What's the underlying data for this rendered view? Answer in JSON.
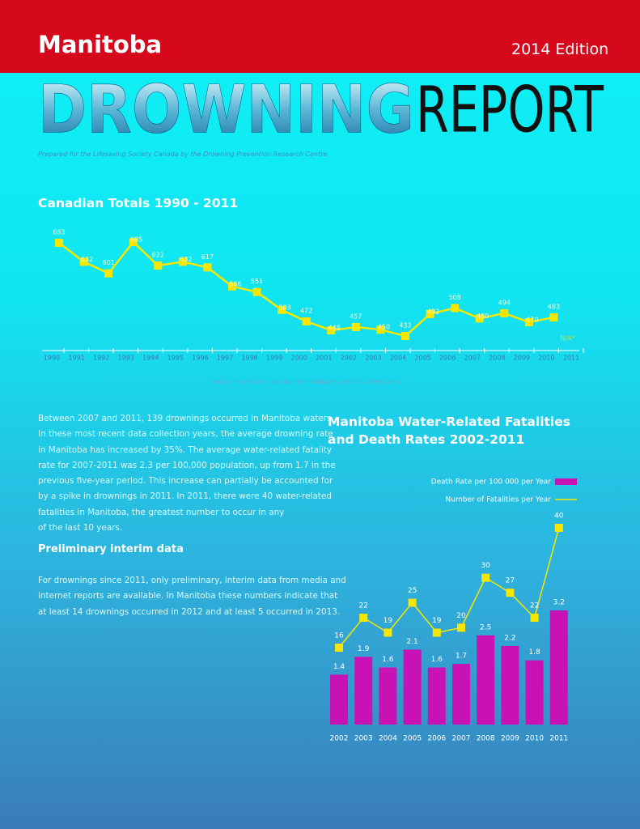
{
  "header": {
    "region": "Manitoba",
    "edition": "2014 Edition"
  },
  "title": {
    "word1": "DROWNING",
    "word2": "REPORT"
  },
  "subtitle": "Prepared for the Lifesaving Society Canada by the Drowning Prevention Research Centre",
  "chart_data": [
    {
      "type": "line",
      "title": "Canadian Totals 1990 - 2011",
      "categories": [
        "1990",
        "1991",
        "1992",
        "1993",
        "1994",
        "1995",
        "1996",
        "1997",
        "1998",
        "1999",
        "2000",
        "2001",
        "2002",
        "2003",
        "2004",
        "2005",
        "2006",
        "2007",
        "2008",
        "2009",
        "2010",
        "2011"
      ],
      "values": [
        683,
        632,
        601,
        685,
        622,
        632,
        617,
        566,
        551,
        503,
        472,
        448,
        457,
        450,
        433,
        492,
        508,
        480,
        494,
        470,
        483,
        null
      ],
      "color": "#f7e600",
      "missing_label": "N/A*",
      "note": "*National total unknown due to unavailability of 2011 Alberta data."
    },
    {
      "type": "bar-line",
      "title": "Manitoba Water-Related Fatalities and Death Rates 2002-2011",
      "categories": [
        "2002",
        "2003",
        "2004",
        "2005",
        "2006",
        "2007",
        "2008",
        "2009",
        "2010",
        "2011"
      ],
      "series": [
        {
          "name": "Death Rate per 100 000 per Year",
          "kind": "bar",
          "color": "#c912b5",
          "values": [
            1.4,
            1.9,
            1.6,
            2.1,
            1.6,
            1.7,
            2.5,
            2.2,
            1.8,
            3.2
          ]
        },
        {
          "name": "Number of Fatalities per Year",
          "kind": "line",
          "color": "#f7e600",
          "values": [
            16,
            22,
            19,
            25,
            19,
            20,
            30,
            27,
            22,
            40
          ]
        }
      ]
    }
  ],
  "body": {
    "paragraph1": [
      "Between 2007 and 2011, 139 drownings occurred in Manitoba waters.",
      "In these most recent data collection years, the average drowning rate",
      "in Manitoba has increased by 35%. The average water-related fatality",
      "rate for 2007-2011 was 2.3 per 100,000 population, up from 1.7 in the",
      "previous five-year period. This increase can partially be accounted for",
      "by a spike in drownings in 2011. In 2011, there were 40 water-related",
      "fatalities in Manitoba, the greatest number to occur in any",
      "of the last 10 years."
    ],
    "heading": "Preliminary interim data",
    "paragraph2": [
      "For drownings since 2011, only preliminary, interim data from media and",
      "internet reports are available. In Manitoba these numbers indicate that",
      "at least 14 drownings occurred in 2012 and at least 5 occurred in 2013."
    ]
  }
}
